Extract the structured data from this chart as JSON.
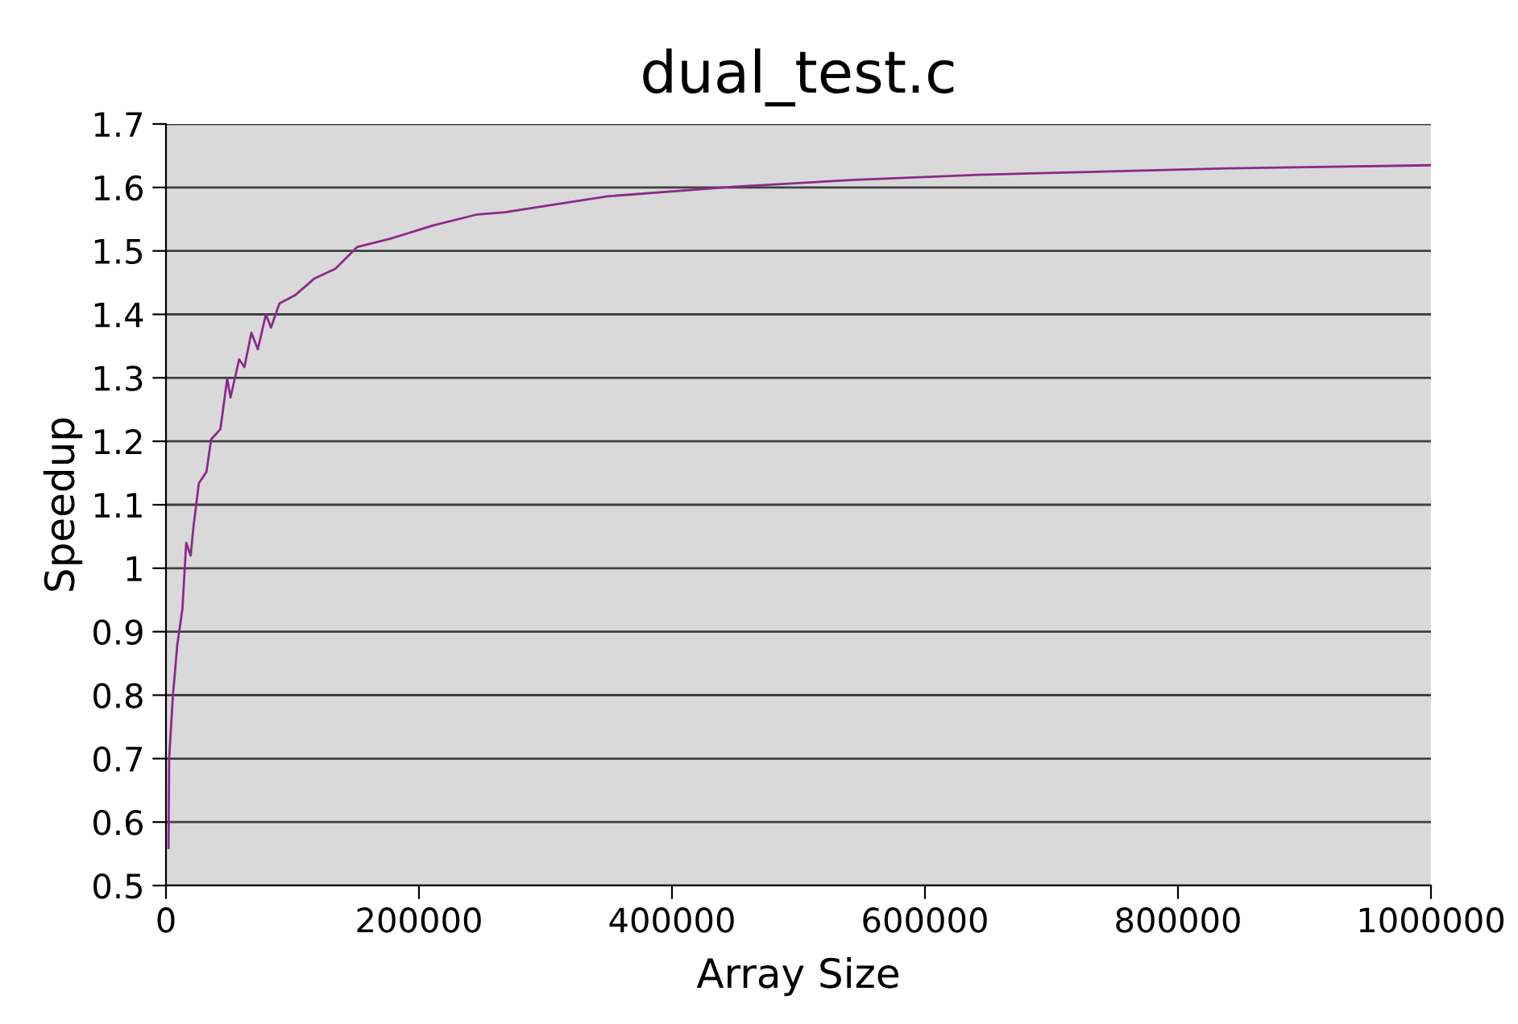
{
  "chart_data": {
    "type": "line",
    "title": "dual_test.c",
    "xlabel": "Array Size",
    "ylabel": "Speedup",
    "series": [
      {
        "color": "#8b2a8b",
        "x": [
          2000,
          2500,
          5500,
          9000,
          13000,
          16000,
          19500,
          21600,
          26000,
          32000,
          35700,
          43000,
          48400,
          51000,
          57800,
          62000,
          67500,
          72600,
          79000,
          83000,
          89600,
          102000,
          117000,
          134000,
          151000,
          177000,
          211000,
          245000,
          268000,
          349000,
          447000,
          545000,
          643000,
          741000,
          839000,
          1000000
        ],
        "values": [
          0.559,
          0.7,
          0.8,
          0.88,
          0.936,
          1.04,
          1.02,
          1.063,
          1.134,
          1.152,
          1.203,
          1.219,
          1.299,
          1.269,
          1.329,
          1.317,
          1.371,
          1.345,
          1.4,
          1.379,
          1.417,
          1.43,
          1.456,
          1.472,
          1.506,
          1.519,
          1.54,
          1.557,
          1.561,
          1.586,
          1.601,
          1.612,
          1.62,
          1.625,
          1.63,
          1.635
        ]
      }
    ],
    "xlim": [
      0,
      1000000
    ],
    "xticks": [
      0,
      200000,
      400000,
      600000,
      800000,
      1000000
    ],
    "ylim": [
      0.5,
      1.7
    ],
    "yticks": [
      0.5,
      0.6,
      0.7,
      0.8,
      0.9,
      1,
      1.1,
      1.2,
      1.3,
      1.4,
      1.5,
      1.6,
      1.7
    ],
    "grid": "y",
    "legend": false,
    "marker": "none",
    "line_style": "solid"
  }
}
